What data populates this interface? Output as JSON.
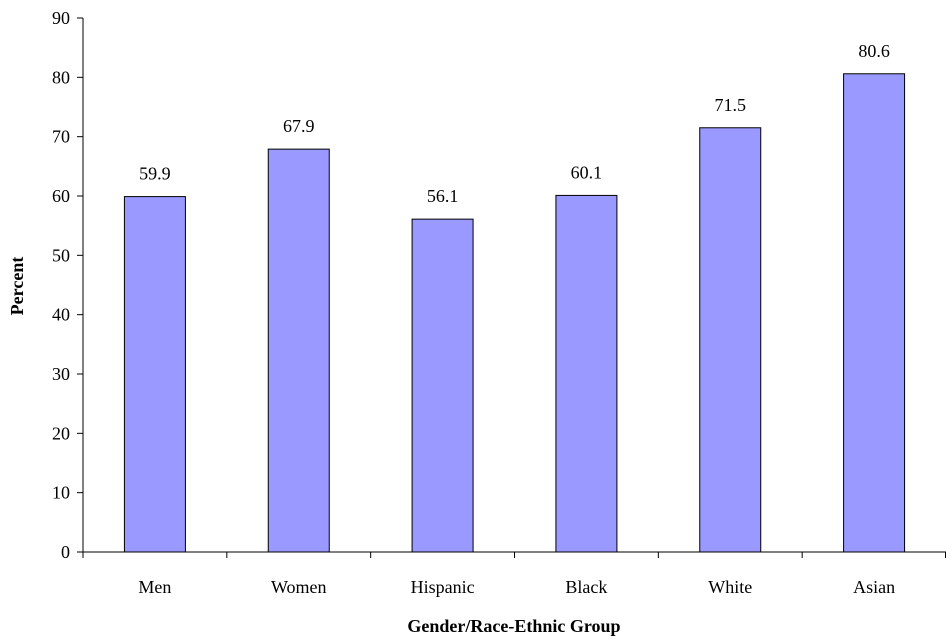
{
  "chart_data": {
    "type": "bar",
    "categories": [
      "Men",
      "Women",
      "Hispanic",
      "Black",
      "White",
      "Asian"
    ],
    "values": [
      59.9,
      67.9,
      56.1,
      60.1,
      71.5,
      80.6
    ],
    "data_labels": [
      "59.9",
      "67.9",
      "56.1",
      "60.1",
      "71.5",
      "80.6"
    ],
    "xlabel": "Gender/Race-Ethnic Group",
    "ylabel": "Percent",
    "ylim": [
      0,
      90
    ],
    "yticks": [
      "0",
      "10",
      "20",
      "30",
      "40",
      "50",
      "60",
      "70",
      "80",
      "90"
    ],
    "grid": false,
    "legend": "none",
    "bar_color": "#9999ff",
    "bar_edge_color": "#000000"
  }
}
